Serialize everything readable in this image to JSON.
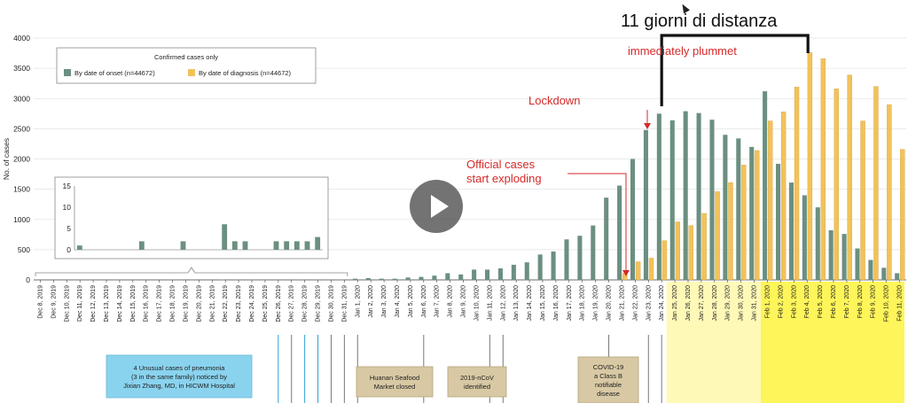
{
  "chart_data": {
    "type": "bar",
    "ylabel": "No. of cases",
    "ylim": [
      0,
      4000
    ],
    "yticks": [
      0,
      500,
      1000,
      1500,
      2000,
      2500,
      3000,
      3500,
      4000
    ],
    "categories": [
      "Dec 8, 2019",
      "Dec 9, 2019",
      "Dec 10, 2019",
      "Dec 11, 2019",
      "Dec 12, 2019",
      "Dec 13, 2019",
      "Dec 14, 2019",
      "Dec 15, 2019",
      "Dec 16, 2019",
      "Dec 17, 2019",
      "Dec 18, 2019",
      "Dec 19, 2019",
      "Dec 20, 2019",
      "Dec 21, 2019",
      "Dec 22, 2019",
      "Dec 23, 2019",
      "Dec 24, 2019",
      "Dec 25, 2019",
      "Dec 26, 2019",
      "Dec 27, 2019",
      "Dec 28, 2019",
      "Dec 29, 2019",
      "Dec 30, 2019",
      "Dec 31, 2019",
      "Jan 1, 2020",
      "Jan 2, 2020",
      "Jan 3, 2020",
      "Jan 4, 2020",
      "Jan 5, 2020",
      "Jan 6, 2020",
      "Jan 7, 2020",
      "Jan 8, 2020",
      "Jan 9, 2020",
      "Jan 10, 2020",
      "Jan 11, 2020",
      "Jan 12, 2020",
      "Jan 13, 2020",
      "Jan 14, 2020",
      "Jan 15, 2020",
      "Jan 16, 2020",
      "Jan 17, 2020",
      "Jan 18, 2020",
      "Jan 19, 2020",
      "Jan 20, 2020",
      "Jan 21, 2020",
      "Jan 22, 2020",
      "Jan 23, 2020",
      "Jan 24, 2020",
      "Jan 25, 2020",
      "Jan 26, 2020",
      "Jan 27, 2020",
      "Jan 28, 2020",
      "Jan 29, 2020",
      "Jan 30, 2020",
      "Jan 31, 2020",
      "Feb 1, 2020",
      "Feb 2, 2020",
      "Feb 3, 2020",
      "Feb 4, 2020",
      "Feb 5, 2020",
      "Feb 6, 2020",
      "Feb 7, 2020",
      "Feb 8, 2020",
      "Feb 9, 2020",
      "Feb 10, 2020",
      "Feb 11, 2020"
    ],
    "series": [
      {
        "name": "By date of onset (n=44672)",
        "color": "#6b8f80",
        "values": [
          1,
          0,
          0,
          0,
          0,
          0,
          2,
          0,
          0,
          0,
          2,
          0,
          0,
          0,
          6,
          2,
          2,
          0,
          0,
          2,
          2,
          2,
          2,
          3,
          20,
          30,
          20,
          20,
          40,
          50,
          70,
          110,
          90,
          170,
          170,
          190,
          250,
          290,
          420,
          470,
          670,
          730,
          900,
          1360,
          1560,
          2000,
          2480,
          2750,
          2640,
          2790,
          2760,
          2650,
          2400,
          2340,
          2200,
          3120,
          1920,
          1610,
          1400,
          1200,
          820,
          760,
          520,
          330,
          200,
          110
        ]
      },
      {
        "name": "By date of diagnosis (n=44672)",
        "color": "#f2c25a",
        "values": [
          0,
          0,
          0,
          0,
          0,
          0,
          0,
          0,
          0,
          0,
          0,
          0,
          0,
          0,
          0,
          0,
          0,
          0,
          0,
          0,
          0,
          0,
          0,
          0,
          0,
          0,
          0,
          0,
          0,
          0,
          0,
          0,
          0,
          0,
          0,
          0,
          0,
          0,
          0,
          0,
          0,
          0,
          0,
          0,
          110,
          300,
          360,
          650,
          960,
          900,
          1100,
          1460,
          1610,
          1900,
          2140,
          2630,
          2780,
          3190,
          3760,
          3660,
          3160,
          3390,
          2630,
          3200,
          2900,
          2160
        ]
      }
    ],
    "legend": {
      "title": "Confirmed cases only",
      "placement": "top-left"
    },
    "inset": {
      "yticks": [
        0,
        5,
        10,
        15
      ],
      "values": [
        1,
        0,
        0,
        0,
        0,
        0,
        2,
        0,
        0,
        0,
        2,
        0,
        0,
        0,
        6,
        2,
        2,
        0,
        0,
        2,
        2,
        2,
        2,
        3
      ]
    }
  },
  "annotations": {
    "title": "11 giorni di distanza",
    "plummet": "immediately plummet",
    "lockdown": "Lockdown",
    "official_1": "Official cases",
    "official_2": "start exploding",
    "boxes": [
      {
        "lines": [
          "4 Unusual cases of pneumonia",
          "(3 in the same family) noticed by",
          "Jixian Zhang, MD, in HICWM Hospital"
        ]
      },
      {
        "lines": [
          "Huanan Seafood",
          "Market closed"
        ]
      },
      {
        "lines": [
          "2019-nCoV",
          "identified"
        ]
      },
      {
        "lines": [
          "COVID-19",
          "a Class B",
          "notifiable",
          "disease"
        ]
      }
    ]
  }
}
